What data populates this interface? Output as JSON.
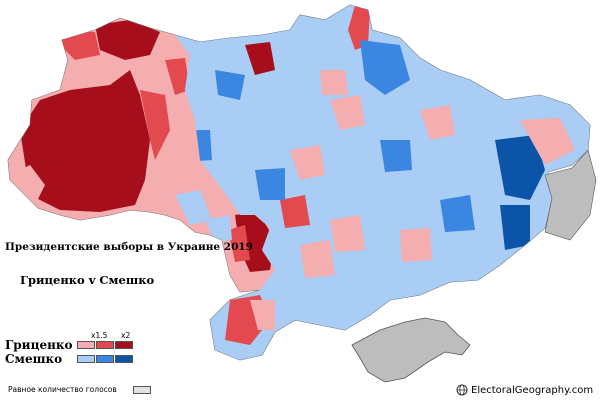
{
  "title": "Президентские выборы в Украине 2019",
  "subtitle": "Гриценко v Смешко",
  "legend": {
    "ratio_labels": [
      "x1.5",
      "x2"
    ],
    "candidates": [
      {
        "name": "Гриценко",
        "colors": [
          "#f4aeb0",
          "#e24a50",
          "#a50e1a"
        ]
      },
      {
        "name": "Смешко",
        "colors": [
          "#a9cdf4",
          "#3a86e0",
          "#0c54a8"
        ]
      }
    ],
    "equal_label": "Равное количество голосов",
    "equal_color": "#e2e2e2"
  },
  "credit": "ElectoralGeography.com",
  "colors": {
    "border": "#555555",
    "occupied": "#bdbdbd"
  }
}
